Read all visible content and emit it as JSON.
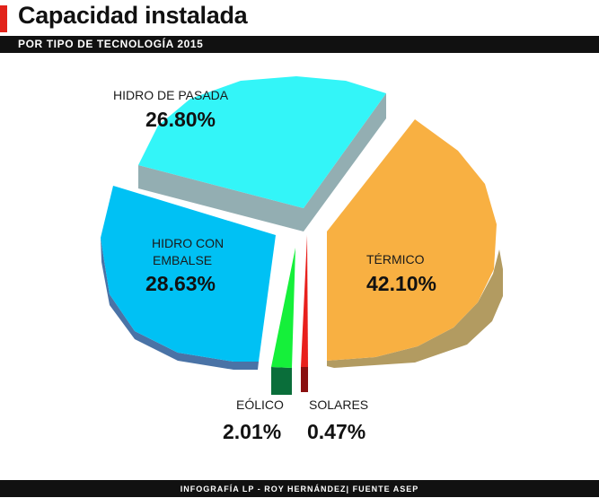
{
  "header": {
    "title": "Capacidad instalada",
    "subtitle": "POR TIPO DE TECNOLOGÍA 2015"
  },
  "footer": {
    "credit": "INFOGRAFÍA LP - ROY HERNÁNDEZ| FUENTE ASEP"
  },
  "colors": {
    "accent": "#e2231a"
  },
  "chart_data": {
    "type": "pie",
    "style": "3d-exploded",
    "categories": [
      "TÉRMICO",
      "HIDRO DE PASADA",
      "HIDRO CON EMBALSE",
      "EÓLICO",
      "SOLARES"
    ],
    "values": [
      42.1,
      26.8,
      28.63,
      2.01,
      0.47
    ],
    "labels": {
      "termico": {
        "name": "TÉRMICO",
        "value": "42.10%"
      },
      "pasada": {
        "name": "HIDRO DE PASADA",
        "value": "26.80%"
      },
      "embalse": {
        "name_line1": "HIDRO CON",
        "name_line2": "EMBALSE",
        "value": "28.63%"
      },
      "eolico": {
        "name": "EÓLICO",
        "value": "2.01%"
      },
      "solares": {
        "name": "SOLARES",
        "value": "0.47%"
      }
    },
    "slice_colors": {
      "termico": "#f8b042",
      "pasada": "#33f5f8",
      "embalse": "#00c1f4",
      "eolico": "#15f03a",
      "solares": "#e8201c"
    },
    "side_colors": {
      "termico": "#b29b61",
      "pasada": "#93aeb2",
      "embalse": "#4a73a6",
      "eolico": "#0a6e3a",
      "solares": "#8a1010"
    }
  }
}
